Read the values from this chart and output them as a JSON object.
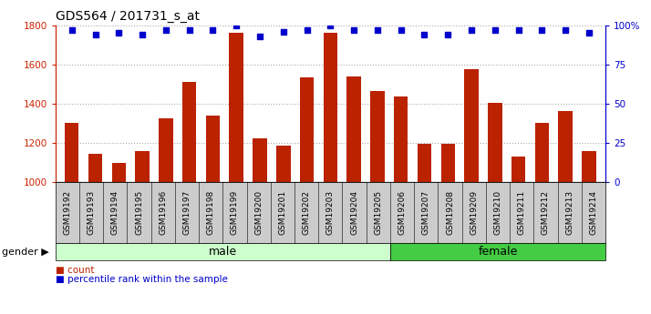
{
  "title": "GDS564 / 201731_s_at",
  "samples": [
    "GSM19192",
    "GSM19193",
    "GSM19194",
    "GSM19195",
    "GSM19196",
    "GSM19197",
    "GSM19198",
    "GSM19199",
    "GSM19200",
    "GSM19201",
    "GSM19202",
    "GSM19203",
    "GSM19204",
    "GSM19205",
    "GSM19206",
    "GSM19207",
    "GSM19208",
    "GSM19209",
    "GSM19210",
    "GSM19211",
    "GSM19212",
    "GSM19213",
    "GSM19214"
  ],
  "counts": [
    1300,
    1145,
    1100,
    1160,
    1325,
    1510,
    1340,
    1760,
    1225,
    1185,
    1535,
    1760,
    1540,
    1465,
    1435,
    1195,
    1195,
    1575,
    1405,
    1130,
    1300,
    1360,
    1160
  ],
  "percentile_ranks": [
    97,
    94,
    95,
    94,
    97,
    97,
    97,
    100,
    93,
    96,
    97,
    100,
    97,
    97,
    97,
    94,
    94,
    97,
    97,
    97,
    97,
    97,
    95
  ],
  "ylim_left": [
    1000,
    1800
  ],
  "ylim_right": [
    0,
    100
  ],
  "yticks_left": [
    1000,
    1200,
    1400,
    1600,
    1800
  ],
  "yticks_right": [
    0,
    25,
    50,
    75,
    100
  ],
  "ytick_labels_right": [
    "0",
    "25",
    "50",
    "75",
    "100%"
  ],
  "bar_color": "#bb2200",
  "dot_color": "#0000cc",
  "grid_color": "#aaaaaa",
  "male_samples": 14,
  "female_samples": 9,
  "male_label": "male",
  "female_label": "female",
  "gender_label": "gender",
  "legend_count_label": "count",
  "legend_pct_label": "percentile rank within the sample",
  "male_bg": "#ccffcc",
  "female_bg": "#44cc44",
  "group_bar_bg": "#cccccc",
  "title_fontsize": 10,
  "tick_fontsize": 6.5,
  "axis_color_left": "#cc2200",
  "axis_color_right": "#0000cc"
}
